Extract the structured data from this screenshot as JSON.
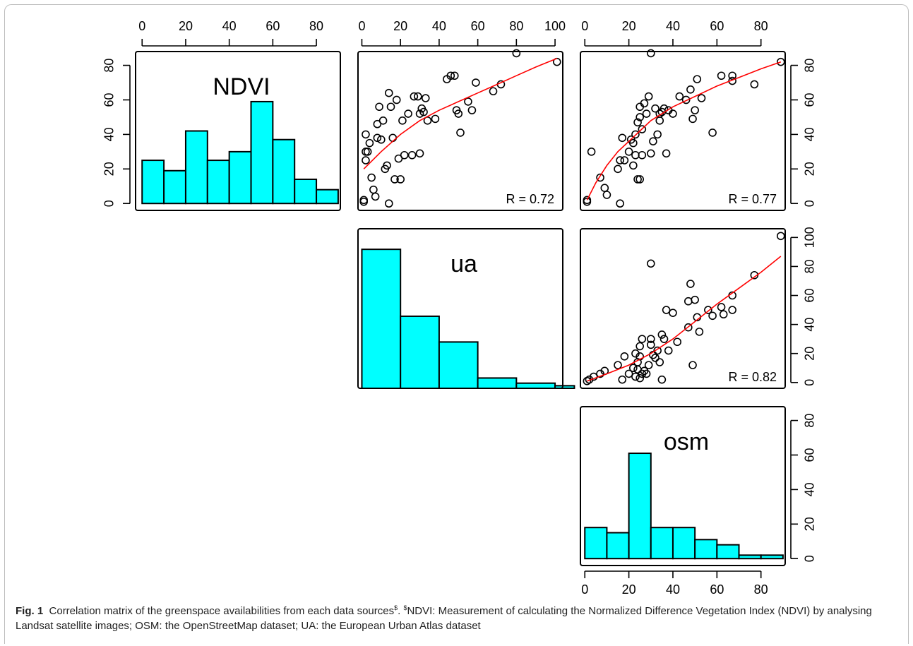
{
  "caption": {
    "label": "Fig. 1",
    "text_part1": "Correlation matrix of the greenspace availabilities from each data sources",
    "sup1": "$",
    "text_part2": ". ",
    "sup2": "$",
    "text_part3": "NDVI: Measurement of calculating the Normalized Difference Vegetation Index (NDVI) by analysing Landsat satellite images; OSM: the OpenStreetMap dataset; UA: the European Urban Atlas dataset"
  },
  "colors": {
    "hist_fill": "#00ffff",
    "hist_stroke": "#000000",
    "smooth_line": "#ff0000",
    "point_stroke": "#000000"
  },
  "chart_data": [
    {
      "type": "bar",
      "panel": "row1-col1",
      "title": "NDVI",
      "categories": [
        "0-10",
        "10-20",
        "20-30",
        "30-40",
        "40-50",
        "50-60",
        "60-70",
        "70-80",
        "80-90"
      ],
      "values": [
        25,
        19,
        42,
        25,
        30,
        59,
        37,
        14,
        8
      ],
      "x_ticks": [
        0,
        20,
        40,
        60,
        80
      ],
      "y_ticks": [
        0,
        20,
        40,
        60,
        80
      ],
      "xlim": [
        -3,
        91
      ],
      "ylim": [
        -4,
        88
      ]
    },
    {
      "type": "scatter",
      "panel": "row1-col2",
      "x_variable": "ua",
      "y_variable": "NDVI",
      "x_ticks": [
        0,
        20,
        40,
        60,
        80,
        100
      ],
      "xlim": [
        -2,
        104
      ],
      "ylim": [
        -4,
        88
      ],
      "annotation": "R = 0.72",
      "points": [
        [
          1,
          1
        ],
        [
          1,
          2
        ],
        [
          2,
          25
        ],
        [
          2,
          30
        ],
        [
          2,
          40
        ],
        [
          3,
          30
        ],
        [
          4,
          35
        ],
        [
          5,
          15
        ],
        [
          6,
          8
        ],
        [
          7,
          4
        ],
        [
          8,
          38
        ],
        [
          8,
          46
        ],
        [
          9,
          56
        ],
        [
          10,
          37
        ],
        [
          11,
          48
        ],
        [
          12,
          20
        ],
        [
          13,
          22
        ],
        [
          14,
          0
        ],
        [
          14,
          64
        ],
        [
          15,
          56
        ],
        [
          16,
          38
        ],
        [
          17,
          14
        ],
        [
          18,
          60
        ],
        [
          19,
          26
        ],
        [
          20,
          14
        ],
        [
          21,
          48
        ],
        [
          22,
          28
        ],
        [
          24,
          52
        ],
        [
          26,
          28
        ],
        [
          27,
          62
        ],
        [
          29,
          62
        ],
        [
          30,
          29
        ],
        [
          30,
          52
        ],
        [
          31,
          55
        ],
        [
          32,
          53
        ],
        [
          33,
          61
        ],
        [
          34,
          48
        ],
        [
          38,
          49
        ],
        [
          44,
          72
        ],
        [
          46,
          74
        ],
        [
          48,
          74
        ],
        [
          49,
          54
        ],
        [
          50,
          52
        ],
        [
          51,
          41
        ],
        [
          55,
          59
        ],
        [
          57,
          54
        ],
        [
          59,
          70
        ],
        [
          68,
          65
        ],
        [
          72,
          69
        ],
        [
          80,
          87
        ],
        [
          101,
          82
        ]
      ],
      "smooth_line": [
        [
          1,
          20
        ],
        [
          10,
          30
        ],
        [
          20,
          40
        ],
        [
          30,
          48
        ],
        [
          40,
          54
        ],
        [
          50,
          59
        ],
        [
          60,
          64
        ],
        [
          70,
          69
        ],
        [
          80,
          74
        ],
        [
          90,
          79
        ],
        [
          101,
          84
        ]
      ]
    },
    {
      "type": "scatter",
      "panel": "row1-col3",
      "x_variable": "osm",
      "y_variable": "NDVI",
      "x_ticks": [
        0,
        20,
        40,
        60,
        80
      ],
      "y_ticks": [
        0,
        20,
        40,
        60,
        80
      ],
      "xlim": [
        -2,
        91
      ],
      "ylim": [
        -4,
        88
      ],
      "annotation": "R = 0.77",
      "points": [
        [
          1,
          1
        ],
        [
          1,
          2
        ],
        [
          3,
          30
        ],
        [
          7,
          15
        ],
        [
          9,
          9
        ],
        [
          10,
          5
        ],
        [
          15,
          20
        ],
        [
          16,
          0
        ],
        [
          16,
          25
        ],
        [
          17,
          38
        ],
        [
          18,
          25
        ],
        [
          20,
          30
        ],
        [
          21,
          37
        ],
        [
          22,
          22
        ],
        [
          22,
          35
        ],
        [
          23,
          40
        ],
        [
          23,
          28
        ],
        [
          24,
          14
        ],
        [
          24,
          47
        ],
        [
          25,
          50
        ],
        [
          25,
          14
        ],
        [
          25,
          56
        ],
        [
          26,
          28
        ],
        [
          26,
          43
        ],
        [
          27,
          58
        ],
        [
          28,
          52
        ],
        [
          29,
          62
        ],
        [
          30,
          87
        ],
        [
          30,
          29
        ],
        [
          31,
          36
        ],
        [
          32,
          55
        ],
        [
          33,
          40
        ],
        [
          34,
          48
        ],
        [
          34,
          52
        ],
        [
          35,
          53
        ],
        [
          36,
          55
        ],
        [
          37,
          29
        ],
        [
          38,
          54
        ],
        [
          40,
          52
        ],
        [
          43,
          62
        ],
        [
          46,
          60
        ],
        [
          48,
          66
        ],
        [
          49,
          49
        ],
        [
          50,
          54
        ],
        [
          51,
          72
        ],
        [
          53,
          61
        ],
        [
          58,
          41
        ],
        [
          62,
          74
        ],
        [
          67,
          74
        ],
        [
          67,
          71
        ],
        [
          77,
          69
        ],
        [
          89,
          82
        ]
      ],
      "smooth_line": [
        [
          1,
          2
        ],
        [
          5,
          12
        ],
        [
          10,
          22
        ],
        [
          15,
          30
        ],
        [
          20,
          36
        ],
        [
          25,
          42
        ],
        [
          30,
          48
        ],
        [
          40,
          56
        ],
        [
          50,
          62
        ],
        [
          60,
          68
        ],
        [
          70,
          73
        ],
        [
          80,
          78
        ],
        [
          89,
          82
        ]
      ]
    },
    {
      "type": "bar",
      "panel": "row2-col2",
      "title": "ua",
      "categories": [
        "0-20",
        "20-40",
        "40-60",
        "60-80",
        "80-100",
        "100-110"
      ],
      "values": [
        27,
        14,
        9,
        2,
        1,
        0.5
      ],
      "xlim": [
        -2,
        104
      ],
      "ylim": [
        0,
        31
      ]
    },
    {
      "type": "scatter",
      "panel": "row2-col3",
      "x_variable": "osm",
      "y_variable": "ua",
      "y_ticks": [
        0,
        20,
        40,
        60,
        80,
        100
      ],
      "xlim": [
        -2,
        91
      ],
      "ylim": [
        -4,
        106
      ],
      "annotation": "R = 0.82",
      "points": [
        [
          1,
          1
        ],
        [
          2,
          2
        ],
        [
          4,
          4
        ],
        [
          7,
          6
        ],
        [
          9,
          8
        ],
        [
          15,
          12
        ],
        [
          17,
          2
        ],
        [
          18,
          18
        ],
        [
          20,
          6
        ],
        [
          22,
          10
        ],
        [
          23,
          20
        ],
        [
          23,
          4
        ],
        [
          24,
          14
        ],
        [
          24,
          9
        ],
        [
          25,
          3
        ],
        [
          25,
          18
        ],
        [
          25,
          25
        ],
        [
          26,
          6
        ],
        [
          26,
          30
        ],
        [
          27,
          8
        ],
        [
          28,
          6
        ],
        [
          29,
          12
        ],
        [
          30,
          82
        ],
        [
          30,
          30
        ],
        [
          30,
          26
        ],
        [
          31,
          19
        ],
        [
          32,
          17
        ],
        [
          33,
          22
        ],
        [
          34,
          14
        ],
        [
          35,
          33
        ],
        [
          35,
          2
        ],
        [
          36,
          30
        ],
        [
          37,
          50
        ],
        [
          38,
          22
        ],
        [
          40,
          48
        ],
        [
          42,
          28
        ],
        [
          47,
          38
        ],
        [
          47,
          56
        ],
        [
          48,
          68
        ],
        [
          49,
          12
        ],
        [
          50,
          57
        ],
        [
          51,
          45
        ],
        [
          52,
          35
        ],
        [
          56,
          50
        ],
        [
          58,
          46
        ],
        [
          62,
          52
        ],
        [
          63,
          47
        ],
        [
          67,
          60
        ],
        [
          67,
          50
        ],
        [
          77,
          74
        ],
        [
          89,
          101
        ]
      ],
      "smooth_line": [
        [
          1,
          1
        ],
        [
          10,
          6
        ],
        [
          20,
          12
        ],
        [
          30,
          20
        ],
        [
          40,
          30
        ],
        [
          50,
          42
        ],
        [
          60,
          54
        ],
        [
          70,
          65
        ],
        [
          80,
          76
        ],
        [
          89,
          87
        ]
      ]
    },
    {
      "type": "bar",
      "panel": "row3-col3",
      "title": "osm",
      "categories": [
        "0-10",
        "10-20",
        "20-30",
        "30-40",
        "40-50",
        "50-60",
        "60-70",
        "70-80",
        "80-90"
      ],
      "values": [
        18,
        15,
        61,
        18,
        18,
        11,
        8,
        2,
        2
      ],
      "x_ticks": [
        0,
        20,
        40,
        60,
        80
      ],
      "y_ticks": [
        0,
        20,
        40,
        60,
        80
      ],
      "xlim": [
        -2,
        91
      ],
      "ylim": [
        -4,
        88
      ]
    }
  ]
}
